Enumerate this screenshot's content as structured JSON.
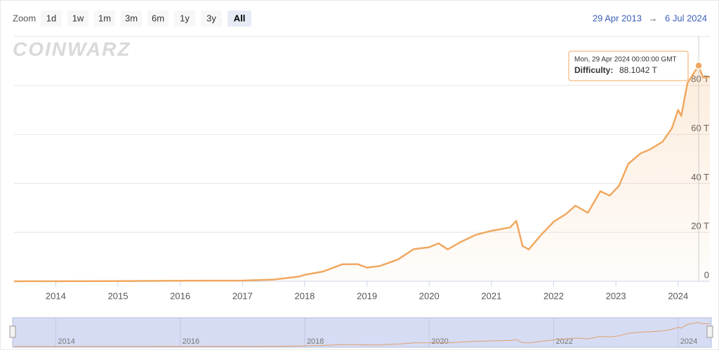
{
  "chart_data": {
    "type": "line",
    "watermark": "COINWARZ",
    "zoom": {
      "label": "Zoom",
      "buttons": [
        "1d",
        "1w",
        "1m",
        "3m",
        "6m",
        "1y",
        "3y",
        "All"
      ],
      "selected": "All"
    },
    "range": {
      "from": "29 Apr 2013",
      "arrow": "→",
      "to": "6 Jul 2024"
    },
    "x": [
      2013.33,
      2015.0,
      2016.0,
      2017.0,
      2017.5,
      2017.9,
      2018.0,
      2018.3,
      2018.6,
      2018.85,
      2019.0,
      2019.2,
      2019.5,
      2019.75,
      2020.0,
      2020.15,
      2020.3,
      2020.5,
      2020.75,
      2021.0,
      2021.3,
      2021.4,
      2021.5,
      2021.6,
      2021.8,
      2022.0,
      2022.2,
      2022.35,
      2022.55,
      2022.75,
      2022.9,
      2023.05,
      2023.2,
      2023.4,
      2023.55,
      2023.75,
      2023.9,
      2024.0,
      2024.05,
      2024.15,
      2024.33,
      2024.4,
      2024.51
    ],
    "series": [
      {
        "color": "#f0a860",
        "values": [
          0.01,
          0.05,
          0.2,
          0.3,
          0.7,
          1.9,
          2.6,
          4,
          6.9,
          7,
          5.6,
          6.2,
          8.9,
          13.1,
          13.9,
          15.5,
          13,
          16,
          19,
          20.6,
          22,
          24.7,
          14.4,
          13,
          19,
          24.3,
          27.5,
          30.9,
          28,
          36.8,
          35,
          39,
          48,
          52.3,
          53.9,
          57,
          62.5,
          70,
          67.5,
          81,
          88.1042,
          83.2,
          83.5
        ]
      }
    ],
    "xlim": [
      2013.33,
      2024.51
    ],
    "xticks": [
      2014,
      2015,
      2016,
      2017,
      2018,
      2019,
      2020,
      2021,
      2022,
      2023,
      2024
    ],
    "ylim": [
      0,
      100
    ],
    "yticks": [
      0,
      {
        "value": 20,
        "label": "20 T"
      },
      {
        "value": 40,
        "label": "40 T"
      },
      {
        "value": 60,
        "label": "60 T"
      },
      {
        "value": 80,
        "label": "80 T"
      },
      {
        "value": 100,
        "label": ""
      }
    ],
    "grid": true,
    "navigator_xticks": [
      2014,
      2016,
      2018,
      2020,
      2022,
      2024
    ],
    "tooltip": {
      "x": 2024.33,
      "date": "Mon, 29 Apr 2024 00:00:00 GMT",
      "label": "Difficulty:",
      "value": 88.1042,
      "value_label": "88.1042 T"
    }
  }
}
